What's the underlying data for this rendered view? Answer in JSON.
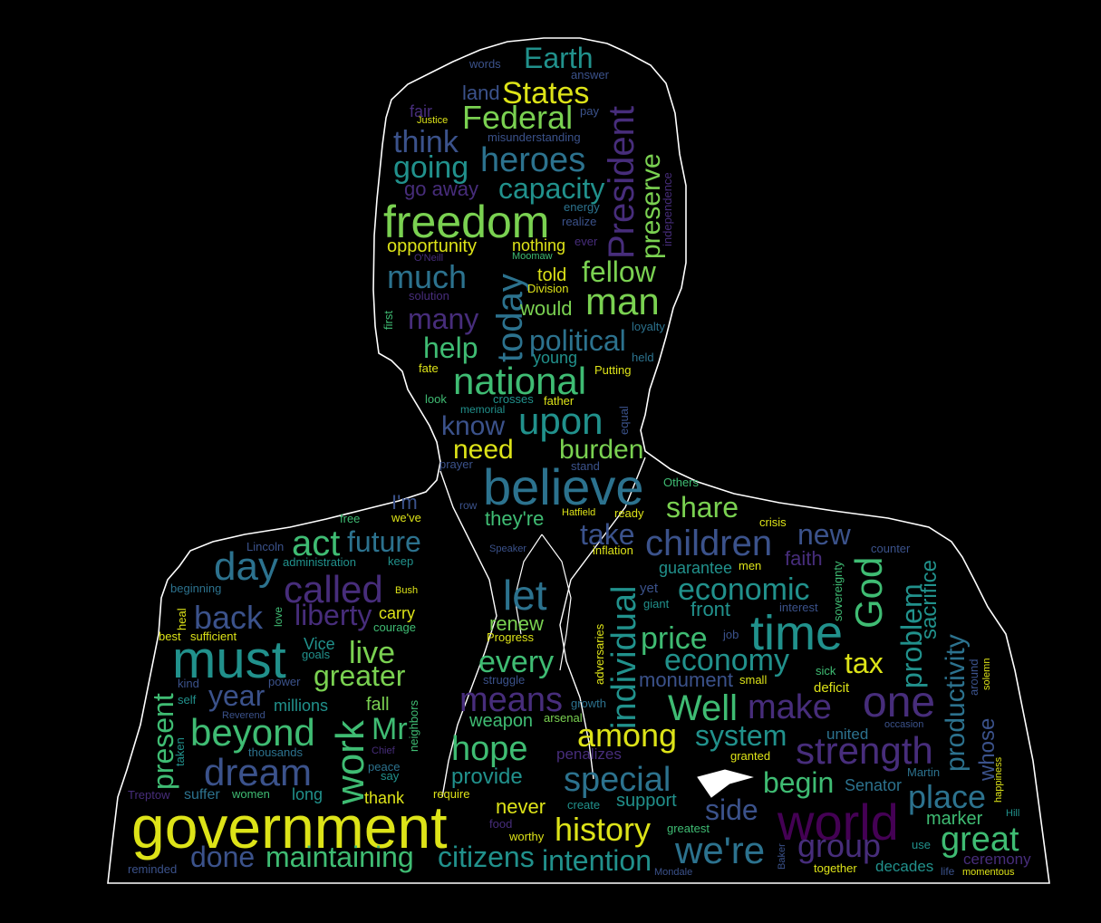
{
  "palette": {
    "background": "#000000",
    "outline": "#ffffff",
    "yellow": "#dde318",
    "lime": "#7ad151",
    "green": "#3fbc73",
    "teal": "#21918c",
    "blue": "#2c728e",
    "indigo": "#3b528b",
    "violet": "#472d7b",
    "purple": "#440154"
  },
  "words": [
    {
      "text": "government",
      "color": "yellow"
    },
    {
      "text": "world",
      "color": "purple"
    },
    {
      "text": "believe",
      "color": "blue"
    },
    {
      "text": "freedom",
      "color": "lime"
    },
    {
      "text": "must",
      "color": "teal"
    },
    {
      "text": "time",
      "color": "teal"
    },
    {
      "text": "President",
      "color": "violet"
    },
    {
      "text": "strength",
      "color": "violet"
    },
    {
      "text": "one",
      "color": "violet"
    },
    {
      "text": "national",
      "color": "green"
    },
    {
      "text": "children",
      "color": "indigo"
    },
    {
      "text": "today",
      "color": "blue"
    },
    {
      "text": "upon",
      "color": "teal"
    },
    {
      "text": "called",
      "color": "violet"
    },
    {
      "text": "we're",
      "color": "blue"
    },
    {
      "text": "beyond",
      "color": "green"
    },
    {
      "text": "work",
      "color": "green"
    },
    {
      "text": "individual",
      "color": "teal"
    },
    {
      "text": "dream",
      "color": "indigo"
    },
    {
      "text": "day",
      "color": "blue"
    },
    {
      "text": "let",
      "color": "blue"
    },
    {
      "text": "act",
      "color": "green"
    },
    {
      "text": "man",
      "color": "lime"
    },
    {
      "text": "heroes",
      "color": "blue"
    },
    {
      "text": "Federal",
      "color": "lime"
    },
    {
      "text": "States",
      "color": "yellow"
    },
    {
      "text": "history",
      "color": "yellow"
    },
    {
      "text": "among",
      "color": "yellow"
    },
    {
      "text": "special",
      "color": "blue"
    },
    {
      "text": "Well",
      "color": "green"
    },
    {
      "text": "make",
      "color": "violet"
    },
    {
      "text": "means",
      "color": "violet"
    },
    {
      "text": "hope",
      "color": "green"
    },
    {
      "text": "great",
      "color": "green"
    },
    {
      "text": "place",
      "color": "blue"
    },
    {
      "text": "group",
      "color": "violet"
    },
    {
      "text": "God",
      "color": "green"
    },
    {
      "text": "economic",
      "color": "teal"
    },
    {
      "text": "economy",
      "color": "teal"
    },
    {
      "text": "price",
      "color": "green"
    },
    {
      "text": "live",
      "color": "lime"
    },
    {
      "text": "greater",
      "color": "lime"
    },
    {
      "text": "liberty",
      "color": "violet"
    },
    {
      "text": "back",
      "color": "indigo"
    },
    {
      "text": "maintaining",
      "color": "green"
    },
    {
      "text": "citizens",
      "color": "teal"
    },
    {
      "text": "intention",
      "color": "teal"
    },
    {
      "text": "done",
      "color": "indigo"
    },
    {
      "text": "much",
      "color": "blue"
    },
    {
      "text": "capacity",
      "color": "teal"
    },
    {
      "text": "think",
      "color": "indigo"
    },
    {
      "text": "going",
      "color": "teal"
    },
    {
      "text": "political",
      "color": "blue"
    },
    {
      "text": "Earth",
      "color": "teal"
    },
    {
      "text": "fellow",
      "color": "lime"
    },
    {
      "text": "preserve",
      "color": "lime"
    },
    {
      "text": "productivity",
      "color": "blue"
    },
    {
      "text": "problem",
      "color": "teal"
    },
    {
      "text": "sacrifice",
      "color": "teal"
    },
    {
      "text": "system",
      "color": "teal"
    },
    {
      "text": "begin",
      "color": "green"
    },
    {
      "text": "side",
      "color": "indigo"
    },
    {
      "text": "share",
      "color": "lime"
    },
    {
      "text": "burden",
      "color": "lime"
    },
    {
      "text": "know",
      "color": "indigo"
    },
    {
      "text": "need",
      "color": "yellow"
    },
    {
      "text": "help",
      "color": "green"
    },
    {
      "text": "many",
      "color": "violet"
    },
    {
      "text": "future",
      "color": "blue"
    },
    {
      "text": "take",
      "color": "indigo"
    },
    {
      "text": "new",
      "color": "indigo"
    },
    {
      "text": "year",
      "color": "indigo"
    },
    {
      "text": "present",
      "color": "green"
    },
    {
      "text": "Mr",
      "color": "green"
    },
    {
      "text": "every",
      "color": "green"
    },
    {
      "text": "tax",
      "color": "yellow"
    },
    {
      "text": "provide",
      "color": "teal"
    },
    {
      "text": "never",
      "color": "yellow"
    },
    {
      "text": "support",
      "color": "teal"
    },
    {
      "text": "marker",
      "color": "green"
    },
    {
      "text": "whose",
      "color": "indigo"
    },
    {
      "text": "they're",
      "color": "green"
    },
    {
      "text": "renew",
      "color": "lime"
    },
    {
      "text": "front",
      "color": "teal"
    },
    {
      "text": "monument",
      "color": "indigo"
    },
    {
      "text": "weapon",
      "color": "green"
    },
    {
      "text": "faith",
      "color": "violet"
    },
    {
      "text": "I'm",
      "color": "indigo"
    },
    {
      "text": "land",
      "color": "indigo"
    },
    {
      "text": "would",
      "color": "lime"
    },
    {
      "text": "go away",
      "color": "violet"
    },
    {
      "text": "opportunity",
      "color": "yellow"
    },
    {
      "text": "nothing",
      "color": "yellow"
    },
    {
      "text": "young",
      "color": "teal"
    },
    {
      "text": "told",
      "color": "yellow"
    },
    {
      "text": "fair",
      "color": "violet"
    },
    {
      "text": "Senator",
      "color": "blue"
    },
    {
      "text": "guarantee",
      "color": "teal"
    },
    {
      "text": "millions",
      "color": "teal"
    },
    {
      "text": "fall",
      "color": "lime"
    },
    {
      "text": "suffer",
      "color": "blue"
    },
    {
      "text": "long",
      "color": "teal"
    },
    {
      "text": "thank",
      "color": "yellow"
    },
    {
      "text": "carry",
      "color": "yellow"
    },
    {
      "text": "Vice",
      "color": "teal"
    },
    {
      "text": "words",
      "color": "indigo"
    },
    {
      "text": "answer",
      "color": "indigo"
    },
    {
      "text": "pay",
      "color": "indigo"
    },
    {
      "text": "Justice",
      "color": "yellow"
    },
    {
      "text": "misunderstanding",
      "color": "indigo"
    },
    {
      "text": "energy",
      "color": "blue"
    },
    {
      "text": "realize",
      "color": "indigo"
    },
    {
      "text": "ever",
      "color": "violet"
    },
    {
      "text": "O'Neill",
      "color": "violet"
    },
    {
      "text": "Moomaw",
      "color": "green"
    },
    {
      "text": "independence",
      "color": "violet"
    },
    {
      "text": "solution",
      "color": "violet"
    },
    {
      "text": "Division",
      "color": "yellow"
    },
    {
      "text": "first",
      "color": "green"
    },
    {
      "text": "loyalty",
      "color": "blue"
    },
    {
      "text": "held",
      "color": "blue"
    },
    {
      "text": "fate",
      "color": "yellow"
    },
    {
      "text": "Putting",
      "color": "yellow"
    },
    {
      "text": "look",
      "color": "green"
    },
    {
      "text": "crosses",
      "color": "teal"
    },
    {
      "text": "father",
      "color": "yellow"
    },
    {
      "text": "memorial",
      "color": "teal"
    },
    {
      "text": "equal",
      "color": "indigo"
    },
    {
      "text": "prayer",
      "color": "indigo"
    },
    {
      "text": "stand",
      "color": "indigo"
    },
    {
      "text": "Others",
      "color": "green"
    },
    {
      "text": "row",
      "color": "indigo"
    },
    {
      "text": "Hatfield",
      "color": "yellow"
    },
    {
      "text": "ready",
      "color": "yellow"
    },
    {
      "text": "crisis",
      "color": "yellow"
    },
    {
      "text": "free",
      "color": "green"
    },
    {
      "text": "we've",
      "color": "yellow"
    },
    {
      "text": "Lincoln",
      "color": "indigo"
    },
    {
      "text": "Speaker",
      "color": "indigo"
    },
    {
      "text": "inflation",
      "color": "yellow"
    },
    {
      "text": "counter",
      "color": "indigo"
    },
    {
      "text": "administration",
      "color": "teal"
    },
    {
      "text": "keep",
      "color": "teal"
    },
    {
      "text": "men",
      "color": "yellow"
    },
    {
      "text": "sovereignty",
      "color": "green"
    },
    {
      "text": "beginning",
      "color": "blue"
    },
    {
      "text": "Bush",
      "color": "yellow"
    },
    {
      "text": "yet",
      "color": "indigo"
    },
    {
      "text": "giant",
      "color": "teal"
    },
    {
      "text": "interest",
      "color": "indigo"
    },
    {
      "text": "heal",
      "color": "yellow"
    },
    {
      "text": "love",
      "color": "green"
    },
    {
      "text": "courage",
      "color": "green"
    },
    {
      "text": "best",
      "color": "yellow"
    },
    {
      "text": "sufficient",
      "color": "yellow"
    },
    {
      "text": "Progress",
      "color": "yellow"
    },
    {
      "text": "job",
      "color": "indigo"
    },
    {
      "text": "adversaries",
      "color": "yellow"
    },
    {
      "text": "goals",
      "color": "teal"
    },
    {
      "text": "kind",
      "color": "indigo"
    },
    {
      "text": "power",
      "color": "indigo"
    },
    {
      "text": "struggle",
      "color": "indigo"
    },
    {
      "text": "sick",
      "color": "green"
    },
    {
      "text": "small",
      "color": "yellow"
    },
    {
      "text": "around",
      "color": "indigo"
    },
    {
      "text": "solemn",
      "color": "yellow"
    },
    {
      "text": "self",
      "color": "teal"
    },
    {
      "text": "Reverend",
      "color": "indigo"
    },
    {
      "text": "growth",
      "color": "blue"
    },
    {
      "text": "deficit",
      "color": "yellow"
    },
    {
      "text": "taken",
      "color": "teal"
    },
    {
      "text": "neighbors",
      "color": "green"
    },
    {
      "text": "arsenal",
      "color": "lime"
    },
    {
      "text": "united",
      "color": "blue"
    },
    {
      "text": "occasion",
      "color": "indigo"
    },
    {
      "text": "thousands",
      "color": "blue"
    },
    {
      "text": "Chief",
      "color": "violet"
    },
    {
      "text": "penalizes",
      "color": "violet"
    },
    {
      "text": "granted",
      "color": "yellow"
    },
    {
      "text": "peace",
      "color": "blue"
    },
    {
      "text": "say",
      "color": "teal"
    },
    {
      "text": "Martin",
      "color": "blue"
    },
    {
      "text": "Treptow",
      "color": "violet"
    },
    {
      "text": "women",
      "color": "green"
    },
    {
      "text": "require",
      "color": "yellow"
    },
    {
      "text": "create",
      "color": "teal"
    },
    {
      "text": "happiness",
      "color": "yellow"
    },
    {
      "text": "food",
      "color": "violet"
    },
    {
      "text": "worthy",
      "color": "yellow"
    },
    {
      "text": "greatest",
      "color": "green"
    },
    {
      "text": "Hill",
      "color": "teal"
    },
    {
      "text": "use",
      "color": "teal"
    },
    {
      "text": "ceremony",
      "color": "violet"
    },
    {
      "text": "reminded",
      "color": "indigo"
    },
    {
      "text": "Mondale",
      "color": "indigo"
    },
    {
      "text": "Baker",
      "color": "indigo"
    },
    {
      "text": "together",
      "color": "yellow"
    },
    {
      "text": "decades",
      "color": "teal"
    },
    {
      "text": "life",
      "color": "indigo"
    },
    {
      "text": "momentous",
      "color": "yellow"
    }
  ]
}
